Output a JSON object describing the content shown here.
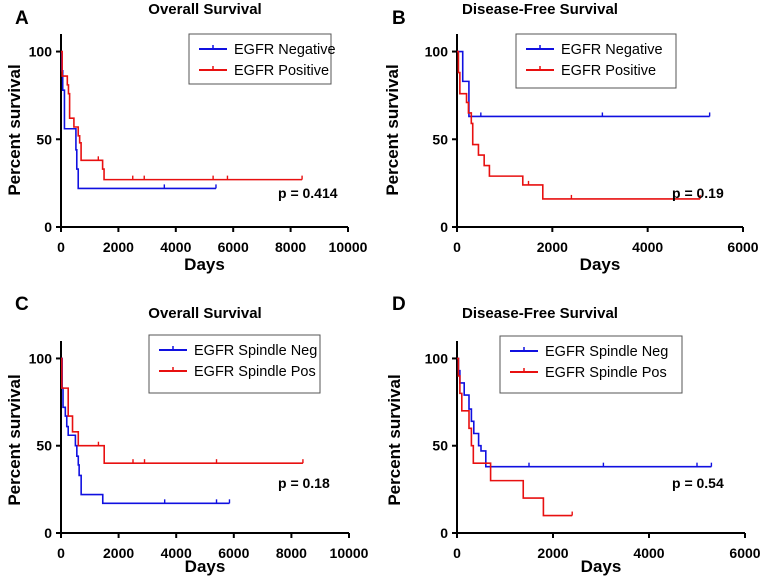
{
  "colors": {
    "negative": "#1010e0",
    "positive": "#e81010",
    "axis": "#000000"
  },
  "chart_data": [
    {
      "type": "line",
      "panel_label": "A",
      "title": "Overall Survival",
      "xlabel": "Days",
      "ylabel": "Percent survival",
      "xlim": [
        0,
        10000
      ],
      "ylim": [
        0,
        110
      ],
      "xticks": [
        "0",
        "2000",
        "4000",
        "6000",
        "8000",
        "10000"
      ],
      "xtick_values": [
        0,
        2000,
        4000,
        6000,
        8000,
        10000
      ],
      "yticks": [
        "0",
        "50",
        "100"
      ],
      "ytick_values": [
        0,
        50,
        100
      ],
      "p_value": "p = 0.414",
      "legend_placement": "top-right",
      "series": [
        {
          "name": "EGFR Negative",
          "color_key": "negative",
          "steps": [
            [
              0,
              100
            ],
            [
              30,
              89
            ],
            [
              60,
              78
            ],
            [
              120,
              56
            ],
            [
              500,
              56
            ],
            [
              520,
              44
            ],
            [
              550,
              33
            ],
            [
              600,
              22
            ]
          ],
          "end": 5400,
          "censored": [
            3600,
            5400
          ]
        },
        {
          "name": "EGFR Positive",
          "color_key": "positive",
          "steps": [
            [
              0,
              100
            ],
            [
              40,
              86
            ],
            [
              220,
              81
            ],
            [
              260,
              76
            ],
            [
              300,
              62
            ],
            [
              450,
              57
            ],
            [
              600,
              52
            ],
            [
              650,
              48
            ],
            [
              700,
              38
            ],
            [
              1450,
              33
            ],
            [
              1500,
              27
            ]
          ],
          "end": 8400,
          "censored": [
            1300,
            2500,
            2900,
            5300,
            5800,
            8400
          ]
        }
      ]
    },
    {
      "type": "line",
      "panel_label": "B",
      "title": "Disease-Free Survival",
      "xlabel": "Days",
      "ylabel": "Percent survival",
      "xlim": [
        0,
        6000
      ],
      "ylim": [
        0,
        110
      ],
      "xticks": [
        "0",
        "2000",
        "4000",
        "6000"
      ],
      "xtick_values": [
        0,
        2000,
        4000,
        6000
      ],
      "yticks": [
        "0",
        "50",
        "100"
      ],
      "ytick_values": [
        0,
        50,
        100
      ],
      "p_value": "p = 0.19",
      "legend_placement": "top-center",
      "series": [
        {
          "name": "EGFR Negative",
          "color_key": "negative",
          "steps": [
            [
              0,
              100
            ],
            [
              120,
              83
            ],
            [
              250,
              63
            ]
          ],
          "end": 5300,
          "censored": [
            500,
            3050,
            5300
          ]
        },
        {
          "name": "EGFR Positive",
          "color_key": "positive",
          "steps": [
            [
              0,
              100
            ],
            [
              30,
              88
            ],
            [
              60,
              76
            ],
            [
              200,
              71
            ],
            [
              240,
              65
            ],
            [
              300,
              59
            ],
            [
              330,
              47
            ],
            [
              450,
              41
            ],
            [
              570,
              35
            ],
            [
              680,
              29
            ],
            [
              1380,
              24
            ],
            [
              1800,
              16
            ]
          ],
          "end": 5100,
          "censored": [
            1500,
            2400,
            5100
          ]
        }
      ]
    },
    {
      "type": "line",
      "panel_label": "C",
      "title": "Overall  Survival",
      "xlabel": "Days",
      "ylabel": "Percent survival",
      "xlim": [
        0,
        10000
      ],
      "ylim": [
        0,
        110
      ],
      "xticks": [
        "0",
        "2000",
        "4000",
        "6000",
        "8000",
        "10000"
      ],
      "xtick_values": [
        0,
        2000,
        4000,
        6000,
        8000,
        10000
      ],
      "yticks": [
        "0",
        "50",
        "100"
      ],
      "ytick_values": [
        0,
        50,
        100
      ],
      "p_value": "p = 0.18",
      "legend_placement": "top-right",
      "series": [
        {
          "name": "EGFR Spindle Neg",
          "color_key": "negative",
          "steps": [
            [
              0,
              100
            ],
            [
              40,
              83
            ],
            [
              70,
              72
            ],
            [
              150,
              67
            ],
            [
              200,
              61
            ],
            [
              250,
              56
            ],
            [
              500,
              50
            ],
            [
              550,
              44
            ],
            [
              600,
              39
            ],
            [
              630,
              33
            ],
            [
              700,
              22
            ],
            [
              1450,
              17
            ]
          ],
          "end": 5850,
          "censored": [
            3600,
            5400,
            5850
          ]
        },
        {
          "name": "EGFR Spindle Pos",
          "color_key": "positive",
          "steps": [
            [
              0,
              100
            ],
            [
              30,
              83
            ],
            [
              250,
              67
            ],
            [
              400,
              58
            ],
            [
              600,
              50
            ],
            [
              1500,
              40
            ]
          ],
          "end": 8400,
          "censored": [
            1300,
            2500,
            2900,
            5400,
            8400
          ]
        }
      ]
    },
    {
      "type": "line",
      "panel_label": "D",
      "title": "Disease-Free Survival",
      "xlabel": "Days",
      "ylabel": "Percent survival",
      "xlim": [
        0,
        6000
      ],
      "ylim": [
        0,
        110
      ],
      "xticks": [
        "0",
        "2000",
        "4000",
        "6000"
      ],
      "xtick_values": [
        0,
        2000,
        4000,
        6000
      ],
      "yticks": [
        "0",
        "50",
        "100"
      ],
      "ytick_values": [
        0,
        50,
        100
      ],
      "p_value": "p = 0.54",
      "legend_placement": "top-center",
      "series": [
        {
          "name": "EGFR Spindle Neg",
          "color_key": "negative",
          "steps": [
            [
              0,
              100
            ],
            [
              30,
              93
            ],
            [
              60,
              86
            ],
            [
              150,
              79
            ],
            [
              250,
              71
            ],
            [
              300,
              64
            ],
            [
              350,
              57
            ],
            [
              450,
              50
            ],
            [
              500,
              47
            ],
            [
              600,
              38
            ]
          ],
          "end": 5300,
          "censored": [
            1500,
            3050,
            5000,
            5300
          ]
        },
        {
          "name": "EGFR Spindle Pos",
          "color_key": "positive",
          "steps": [
            [
              0,
              100
            ],
            [
              30,
              90
            ],
            [
              60,
              80
            ],
            [
              100,
              70
            ],
            [
              250,
              60
            ],
            [
              300,
              50
            ],
            [
              340,
              40
            ],
            [
              700,
              30
            ],
            [
              1380,
              20
            ],
            [
              1800,
              10
            ]
          ],
          "end": 2400,
          "censored": [
            2400
          ]
        }
      ]
    }
  ]
}
